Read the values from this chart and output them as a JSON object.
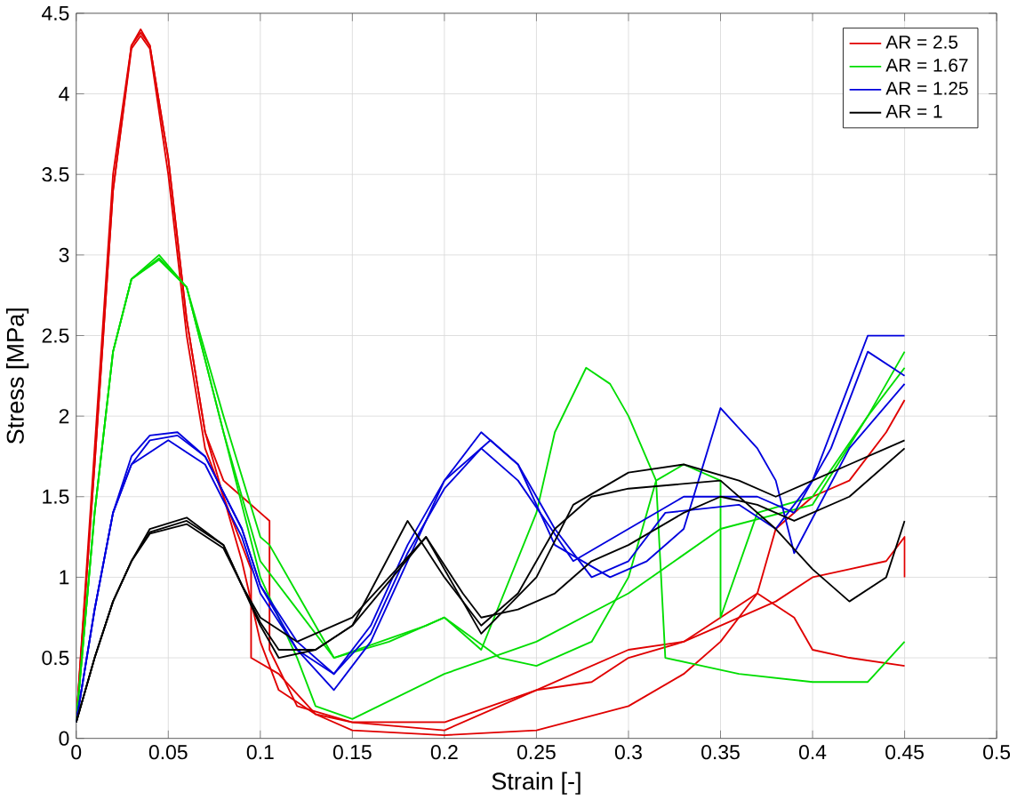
{
  "chart_data": {
    "type": "line",
    "xlabel": "Strain [-]",
    "ylabel": "Stress [MPa]",
    "xlim": [
      0,
      0.5
    ],
    "ylim": [
      0,
      4.5
    ],
    "xticks": [
      0,
      0.05,
      0.1,
      0.15,
      0.2,
      0.25,
      0.3,
      0.35,
      0.4,
      0.45,
      0.5
    ],
    "yticks": [
      0,
      0.5,
      1,
      1.5,
      2,
      2.5,
      3,
      3.5,
      4,
      4.5
    ],
    "grid": true,
    "legend": "top right",
    "marker": "none",
    "line_style": "solid",
    "series": [
      {
        "name": "AR = 2.5",
        "color": "#e00000",
        "x": [
          0,
          0.01,
          0.02,
          0.03,
          0.035,
          0.04,
          0.05,
          0.06,
          0.07,
          0.08,
          0.09,
          0.095,
          0.095,
          0.11,
          0.13,
          0.15,
          0.2,
          0.25,
          0.27,
          0.3,
          0.33,
          0.35,
          0.38,
          0.4,
          0.42,
          0.44,
          0.45,
          0.45
        ],
        "values": [
          0.1,
          1.8,
          3.5,
          4.3,
          4.4,
          4.3,
          3.6,
          2.6,
          1.9,
          1.5,
          1.2,
          1.05,
          0.5,
          0.4,
          0.15,
          0.1,
          0.1,
          0.3,
          0.4,
          0.55,
          0.6,
          0.7,
          0.85,
          1.0,
          1.05,
          1.1,
          1.25,
          1.0
        ]
      },
      {
        "color": "#e00000",
        "x": [
          0,
          0.01,
          0.02,
          0.03,
          0.035,
          0.04,
          0.05,
          0.06,
          0.07,
          0.08,
          0.09,
          0.1,
          0.105,
          0.105,
          0.12,
          0.15,
          0.2,
          0.25,
          0.28,
          0.3,
          0.33,
          0.35,
          0.37,
          0.39,
          0.4,
          0.42,
          0.45
        ],
        "values": [
          0.1,
          1.7,
          3.4,
          4.3,
          4.38,
          4.3,
          3.6,
          2.6,
          1.9,
          1.6,
          1.5,
          1.4,
          1.35,
          0.55,
          0.2,
          0.1,
          0.05,
          0.3,
          0.35,
          0.5,
          0.6,
          0.75,
          0.9,
          0.75,
          0.55,
          0.5,
          0.45
        ]
      },
      {
        "color": "#e00000",
        "x": [
          0,
          0.01,
          0.02,
          0.03,
          0.035,
          0.04,
          0.05,
          0.06,
          0.07,
          0.08,
          0.09,
          0.1,
          0.11,
          0.13,
          0.15,
          0.2,
          0.25,
          0.3,
          0.33,
          0.35,
          0.37,
          0.38,
          0.4,
          0.42,
          0.44,
          0.45
        ],
        "values": [
          0.1,
          1.7,
          3.4,
          4.28,
          4.36,
          4.28,
          3.5,
          2.5,
          1.8,
          1.5,
          1.1,
          0.6,
          0.3,
          0.15,
          0.05,
          0.02,
          0.05,
          0.2,
          0.4,
          0.6,
          0.9,
          1.3,
          1.5,
          1.6,
          1.9,
          2.1
        ]
      },
      {
        "name": "AR = 1.67",
        "color": "#00dd00",
        "x": [
          0,
          0.01,
          0.02,
          0.03,
          0.045,
          0.06,
          0.08,
          0.1,
          0.105,
          0.12,
          0.14,
          0.17,
          0.2,
          0.22,
          0.25,
          0.26,
          0.277,
          0.29,
          0.3,
          0.315,
          0.32,
          0.34,
          0.36,
          0.4,
          0.43,
          0.45
        ],
        "values": [
          0.1,
          1.4,
          2.4,
          2.85,
          3.0,
          2.8,
          2.0,
          1.25,
          1.2,
          0.9,
          0.5,
          0.6,
          0.75,
          0.55,
          1.4,
          1.9,
          2.3,
          2.2,
          2.0,
          1.6,
          0.5,
          0.45,
          0.4,
          0.35,
          0.35,
          0.6
        ]
      },
      {
        "color": "#00dd00",
        "x": [
          0,
          0.01,
          0.02,
          0.03,
          0.045,
          0.06,
          0.08,
          0.1,
          0.12,
          0.14,
          0.19,
          0.2,
          0.23,
          0.25,
          0.28,
          0.3,
          0.315,
          0.33,
          0.35,
          0.35,
          0.37,
          0.4,
          0.43,
          0.45
        ],
        "values": [
          0.1,
          1.4,
          2.4,
          2.85,
          2.98,
          2.8,
          1.9,
          1.1,
          0.8,
          0.5,
          0.7,
          0.75,
          0.5,
          0.45,
          0.6,
          1.0,
          1.6,
          1.7,
          1.6,
          0.75,
          1.4,
          1.5,
          2.0,
          2.4
        ]
      },
      {
        "color": "#00dd00",
        "x": [
          0,
          0.01,
          0.02,
          0.03,
          0.045,
          0.06,
          0.08,
          0.1,
          0.12,
          0.13,
          0.15,
          0.2,
          0.25,
          0.3,
          0.35,
          0.4,
          0.43,
          0.45
        ],
        "values": [
          0.1,
          1.4,
          2.4,
          2.85,
          2.97,
          2.8,
          1.9,
          1.0,
          0.5,
          0.2,
          0.12,
          0.4,
          0.6,
          0.9,
          1.3,
          1.45,
          2.0,
          2.3
        ]
      },
      {
        "name": "AR = 1.25",
        "color": "#0000dd",
        "x": [
          0,
          0.01,
          0.02,
          0.03,
          0.04,
          0.055,
          0.07,
          0.09,
          0.1,
          0.12,
          0.14,
          0.16,
          0.18,
          0.2,
          0.22,
          0.24,
          0.26,
          0.28,
          0.3,
          0.32,
          0.36,
          0.38,
          0.4,
          0.42,
          0.43,
          0.45
        ],
        "values": [
          0.1,
          0.8,
          1.4,
          1.75,
          1.88,
          1.9,
          1.75,
          1.3,
          0.95,
          0.55,
          0.3,
          0.6,
          1.1,
          1.6,
          1.9,
          1.7,
          1.3,
          1.0,
          1.1,
          1.4,
          1.45,
          1.3,
          1.6,
          2.2,
          2.5,
          2.5
        ]
      },
      {
        "color": "#0000dd",
        "x": [
          0,
          0.01,
          0.02,
          0.03,
          0.04,
          0.055,
          0.07,
          0.09,
          0.1,
          0.12,
          0.14,
          0.16,
          0.18,
          0.2,
          0.225,
          0.24,
          0.26,
          0.29,
          0.31,
          0.33,
          0.35,
          0.37,
          0.38,
          0.39,
          0.42,
          0.45
        ],
        "values": [
          0.1,
          0.8,
          1.4,
          1.7,
          1.85,
          1.88,
          1.75,
          1.3,
          0.95,
          0.6,
          0.4,
          0.7,
          1.2,
          1.6,
          1.85,
          1.7,
          1.2,
          1.0,
          1.1,
          1.3,
          2.05,
          1.8,
          1.6,
          1.15,
          1.8,
          2.2
        ]
      },
      {
        "color": "#0000dd",
        "x": [
          0,
          0.01,
          0.02,
          0.03,
          0.05,
          0.07,
          0.09,
          0.1,
          0.12,
          0.14,
          0.16,
          0.18,
          0.2,
          0.22,
          0.24,
          0.27,
          0.3,
          0.33,
          0.37,
          0.39,
          0.41,
          0.43,
          0.45
        ],
        "values": [
          0.1,
          0.8,
          1.4,
          1.7,
          1.85,
          1.7,
          1.25,
          0.9,
          0.55,
          0.4,
          0.65,
          1.15,
          1.55,
          1.8,
          1.6,
          1.1,
          1.3,
          1.5,
          1.5,
          1.4,
          1.8,
          2.4,
          2.25
        ]
      },
      {
        "name": "AR = 1",
        "color": "#000000",
        "x": [
          0,
          0.01,
          0.02,
          0.03,
          0.04,
          0.06,
          0.08,
          0.09,
          0.1,
          0.11,
          0.13,
          0.15,
          0.18,
          0.2,
          0.22,
          0.24,
          0.26,
          0.28,
          0.3,
          0.35,
          0.38,
          0.4,
          0.42,
          0.44,
          0.45
        ],
        "values": [
          0.1,
          0.5,
          0.85,
          1.1,
          1.3,
          1.37,
          1.2,
          0.95,
          0.7,
          0.5,
          0.55,
          0.7,
          1.35,
          1.0,
          0.7,
          0.9,
          1.3,
          1.5,
          1.55,
          1.6,
          1.3,
          1.05,
          0.85,
          1.0,
          1.35
        ]
      },
      {
        "color": "#000000",
        "x": [
          0,
          0.01,
          0.02,
          0.03,
          0.04,
          0.06,
          0.08,
          0.09,
          0.1,
          0.11,
          0.13,
          0.15,
          0.19,
          0.21,
          0.22,
          0.25,
          0.27,
          0.3,
          0.33,
          0.36,
          0.38,
          0.4,
          0.42,
          0.45
        ],
        "values": [
          0.1,
          0.5,
          0.85,
          1.1,
          1.28,
          1.35,
          1.2,
          0.95,
          0.72,
          0.55,
          0.55,
          0.7,
          1.25,
          0.85,
          0.65,
          1.0,
          1.45,
          1.65,
          1.7,
          1.6,
          1.5,
          1.6,
          1.7,
          1.85
        ]
      },
      {
        "color": "#000000",
        "x": [
          0,
          0.01,
          0.02,
          0.03,
          0.04,
          0.06,
          0.08,
          0.09,
          0.1,
          0.12,
          0.15,
          0.19,
          0.21,
          0.22,
          0.24,
          0.26,
          0.28,
          0.3,
          0.33,
          0.35,
          0.37,
          0.39,
          0.42,
          0.45
        ],
        "values": [
          0.1,
          0.5,
          0.85,
          1.1,
          1.27,
          1.33,
          1.18,
          0.95,
          0.75,
          0.6,
          0.75,
          1.25,
          0.9,
          0.75,
          0.8,
          0.9,
          1.1,
          1.2,
          1.4,
          1.5,
          1.45,
          1.35,
          1.5,
          1.8
        ]
      }
    ]
  }
}
